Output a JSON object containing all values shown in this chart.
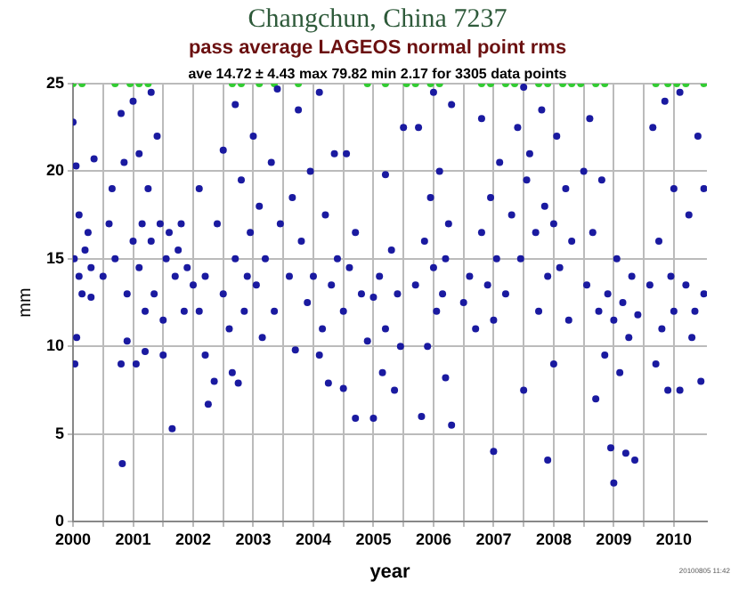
{
  "chart_data": {
    "type": "scatter",
    "title": "Changchun, China 7237",
    "subtitle": "pass average LAGEOS normal point rms",
    "xlabel": "year",
    "ylabel": "mm",
    "annotations": [
      "ave 14.72 ± 4.43 max 79.82 min 2.17 for 3305 data points",
      "20100805 11:42"
    ],
    "xlim": [
      2000,
      2010.55
    ],
    "ylim": [
      0,
      25
    ],
    "xticks": [
      2000,
      {
        "value": 2000.5,
        "label": null
      },
      2001,
      {
        "value": 2001.5,
        "label": null
      },
      2002,
      {
        "value": 2002.5,
        "label": null
      },
      2003,
      {
        "value": 2003.5,
        "label": null
      },
      2004,
      {
        "value": 2004.5,
        "label": null
      },
      2005,
      {
        "value": 2005.5,
        "label": null
      },
      2006,
      {
        "value": 2006.5,
        "label": null
      },
      2007,
      {
        "value": 2007.5,
        "label": null
      },
      2008,
      {
        "value": 2008.5,
        "label": null
      },
      2009,
      {
        "value": 2009.5,
        "label": null
      },
      2010
    ],
    "yticks": [
      0,
      5,
      10,
      15,
      20,
      25
    ],
    "grid": true,
    "legend": false,
    "marker": "circle",
    "series": [
      {
        "color": "#1a1aa0",
        "x": [
          2000.0,
          2000.02,
          2000.05,
          2000.03,
          2000.06,
          2000.1,
          2000.1,
          2000.15,
          2000.2,
          2000.25,
          2000.3,
          2000.35,
          2000.3,
          2000.5,
          2000.6,
          2000.65,
          2000.7,
          2000.8,
          2000.8,
          2000.82,
          2000.85,
          2000.9,
          2000.9,
          2001.0,
          2001.0,
          2001.05,
          2001.1,
          2001.1,
          2001.15,
          2001.2,
          2001.2,
          2001.25,
          2001.3,
          2001.3,
          2001.35,
          2001.4,
          2001.45,
          2001.5,
          2001.5,
          2001.55,
          2001.6,
          2001.65,
          2001.7,
          2001.75,
          2001.8,
          2001.85,
          2001.9,
          2002.0,
          2002.1,
          2002.1,
          2002.2,
          2002.2,
          2002.25,
          2002.35,
          2002.4,
          2002.5,
          2002.5,
          2002.6,
          2002.65,
          2002.7,
          2002.7,
          2002.75,
          2002.8,
          2002.85,
          2002.9,
          2002.95,
          2003.0,
          2003.05,
          2003.1,
          2003.15,
          2003.2,
          2003.3,
          2003.35,
          2003.4,
          2003.45,
          2003.6,
          2003.65,
          2003.7,
          2003.75,
          2003.8,
          2003.9,
          2003.95,
          2004.0,
          2004.1,
          2004.1,
          2004.15,
          2004.2,
          2004.25,
          2004.3,
          2004.35,
          2004.4,
          2004.5,
          2004.5,
          2004.55,
          2004.6,
          2004.7,
          2004.7,
          2004.8,
          2004.9,
          2005.0,
          2005.0,
          2005.1,
          2005.15,
          2005.2,
          2005.2,
          2005.3,
          2005.35,
          2005.4,
          2005.45,
          2005.5,
          2005.7,
          2005.75,
          2005.8,
          2005.85,
          2005.9,
          2005.95,
          2006.0,
          2006.0,
          2006.05,
          2006.1,
          2006.15,
          2006.2,
          2006.2,
          2006.3,
          2006.3,
          2006.25,
          2006.5,
          2006.6,
          2006.7,
          2006.8,
          2006.8,
          2006.9,
          2006.95,
          2007.0,
          2007.0,
          2007.05,
          2007.1,
          2007.2,
          2007.3,
          2007.4,
          2007.45,
          2007.5,
          2007.5,
          2007.55,
          2007.6,
          2007.7,
          2007.75,
          2007.8,
          2007.85,
          2007.9,
          2007.9,
          2008.0,
          2008.0,
          2008.05,
          2008.1,
          2008.2,
          2008.25,
          2008.3,
          2008.5,
          2008.55,
          2008.6,
          2008.65,
          2008.7,
          2008.75,
          2008.8,
          2008.85,
          2008.9,
          2008.95,
          2009.0,
          2009.0,
          2009.05,
          2009.1,
          2009.15,
          2009.2,
          2009.25,
          2009.3,
          2009.35,
          2009.4,
          2009.6,
          2009.65,
          2009.7,
          2009.75,
          2009.8,
          2009.85,
          2009.9,
          2009.95,
          2010.0,
          2010.0,
          2010.1,
          2010.1,
          2010.2,
          2010.25,
          2010.3,
          2010.35,
          2010.4,
          2010.45,
          2010.5,
          2010.5
        ],
        "values": [
          22.8,
          15,
          20.3,
          9,
          10.5,
          17.5,
          14,
          13,
          15.5,
          16.5,
          14.5,
          20.7,
          12.8,
          14,
          17,
          19,
          15,
          23.3,
          9,
          3.3,
          20.5,
          13,
          10.3,
          16,
          24,
          9,
          21,
          14.5,
          17,
          12,
          9.7,
          19,
          16,
          24.5,
          13,
          22,
          17,
          11.5,
          9.5,
          15,
          16.5,
          5.3,
          14,
          15.5,
          17,
          12,
          14.5,
          13.5,
          19,
          12,
          14,
          9.5,
          6.7,
          8,
          17,
          13,
          21.2,
          11,
          8.5,
          23.8,
          15,
          7.9,
          19.5,
          12,
          14,
          16.5,
          22,
          13.5,
          18,
          10.5,
          15,
          20.5,
          12,
          24.7,
          17,
          14,
          18.5,
          9.8,
          23.5,
          16,
          12.5,
          20,
          14,
          24.5,
          9.5,
          11,
          17.5,
          7.9,
          13.5,
          21,
          15,
          7.6,
          12,
          21,
          14.5,
          5.9,
          16.5,
          13,
          10.3,
          12.8,
          5.9,
          14,
          8.5,
          19.8,
          11,
          15.5,
          7.5,
          13,
          10,
          22.5,
          13.5,
          22.5,
          6,
          16,
          10,
          18.5,
          14.5,
          24.5,
          12,
          20,
          13,
          8.2,
          15,
          23.8,
          5.5,
          17,
          12.5,
          14,
          11,
          16.5,
          23,
          13.5,
          18.5,
          4,
          11.5,
          15,
          20.5,
          13,
          17.5,
          22.5,
          15,
          24.8,
          7.5,
          19.5,
          21,
          16.5,
          12,
          23.5,
          18,
          3.5,
          14,
          17,
          9,
          22,
          14.5,
          19,
          11.5,
          16,
          20,
          13.5,
          23,
          16.5,
          7,
          12,
          19.5,
          9.5,
          13,
          4.2,
          11.5,
          2.2,
          15,
          8.5,
          12.5,
          3.9,
          10.5,
          14,
          3.5,
          11.8,
          13.5,
          22.5,
          9,
          16,
          11,
          24,
          7.5,
          14,
          19,
          12,
          7.5,
          24.5,
          13.5,
          17.5,
          10.5,
          12,
          22,
          8,
          13,
          19
        ]
      },
      {
        "color": "#33cc33",
        "x": [
          2000.0,
          2000.15,
          2000.7,
          2000.95,
          2001.1,
          2001.25,
          2002.65,
          2002.8,
          2003.1,
          2003.35,
          2003.75,
          2004.9,
          2005.2,
          2005.55,
          2005.7,
          2005.95,
          2006.1,
          2006.8,
          2006.95,
          2007.2,
          2007.35,
          2007.75,
          2007.9,
          2008.15,
          2008.3,
          2008.45,
          2008.7,
          2008.85,
          2009.7,
          2009.9,
          2010.05,
          2010.2,
          2010.5
        ],
        "values": [
          25,
          25,
          25,
          25,
          25,
          25,
          25,
          25,
          25,
          25,
          25,
          25,
          25,
          25,
          25,
          25,
          25,
          25,
          25,
          25,
          25,
          25,
          25,
          25,
          25,
          25,
          25,
          25,
          25,
          25,
          25,
          25,
          25
        ]
      }
    ]
  }
}
